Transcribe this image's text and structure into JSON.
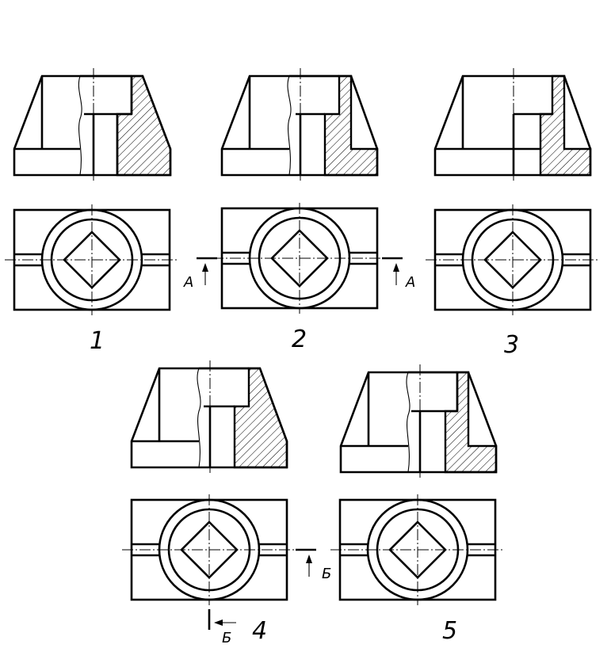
{
  "figures": [
    {
      "number": "1"
    },
    {
      "number": "2",
      "section_marks": [
        "A",
        "A"
      ]
    },
    {
      "number": "3"
    },
    {
      "number": "4",
      "section_marks": [
        "Б",
        "Б"
      ]
    },
    {
      "number": "5"
    }
  ],
  "colors": {
    "line": "#000000",
    "background": "#ffffff"
  }
}
